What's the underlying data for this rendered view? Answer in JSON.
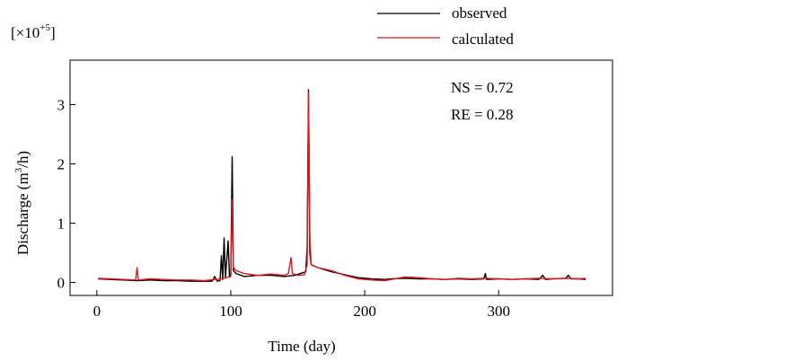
{
  "chart_data": {
    "type": "line",
    "title": "",
    "xlabel": "Time (day)",
    "ylabel_base": "Discharge (m",
    "ylabel_sup": "3",
    "ylabel_end": "/h)",
    "scale_prefix": "[×10",
    "scale_exp": "+5",
    "scale_suffix": "]",
    "xlim": [
      -20,
      385
    ],
    "ylim": [
      -0.22,
      3.75
    ],
    "xticks": [
      0,
      100,
      200,
      300
    ],
    "yticks": [
      0,
      1,
      2,
      3
    ],
    "legend_position": "top-right",
    "annotations": [
      "NS = 0.72",
      "RE = 0.28"
    ],
    "series": [
      {
        "name": "observed",
        "color": "#000000",
        "points": [
          [
            1,
            0.06
          ],
          [
            10,
            0.05
          ],
          [
            20,
            0.04
          ],
          [
            30,
            0.03
          ],
          [
            40,
            0.04
          ],
          [
            50,
            0.03
          ],
          [
            60,
            0.03
          ],
          [
            70,
            0.02
          ],
          [
            80,
            0.02
          ],
          [
            86,
            0.02
          ],
          [
            88,
            0.1
          ],
          [
            90,
            0.02
          ],
          [
            92,
            0.03
          ],
          [
            93,
            0.45
          ],
          [
            94,
            0.05
          ],
          [
            95,
            0.75
          ],
          [
            96,
            0.08
          ],
          [
            98,
            0.7
          ],
          [
            99,
            0.1
          ],
          [
            100,
            0.15
          ],
          [
            101,
            2.12
          ],
          [
            102,
            0.2
          ],
          [
            104,
            0.15
          ],
          [
            110,
            0.1
          ],
          [
            120,
            0.12
          ],
          [
            130,
            0.12
          ],
          [
            140,
            0.1
          ],
          [
            148,
            0.12
          ],
          [
            152,
            0.15
          ],
          [
            156,
            0.18
          ],
          [
            157,
            0.6
          ],
          [
            158,
            3.25
          ],
          [
            159,
            0.5
          ],
          [
            160,
            0.3
          ],
          [
            165,
            0.25
          ],
          [
            175,
            0.18
          ],
          [
            185,
            0.13
          ],
          [
            195,
            0.08
          ],
          [
            205,
            0.06
          ],
          [
            215,
            0.05
          ],
          [
            220,
            0.06
          ],
          [
            230,
            0.07
          ],
          [
            240,
            0.06
          ],
          [
            250,
            0.06
          ],
          [
            260,
            0.05
          ],
          [
            270,
            0.06
          ],
          [
            280,
            0.05
          ],
          [
            289,
            0.06
          ],
          [
            290,
            0.15
          ],
          [
            291,
            0.05
          ],
          [
            300,
            0.06
          ],
          [
            310,
            0.05
          ],
          [
            320,
            0.06
          ],
          [
            330,
            0.05
          ],
          [
            333,
            0.12
          ],
          [
            335,
            0.05
          ],
          [
            340,
            0.06
          ],
          [
            350,
            0.07
          ],
          [
            352,
            0.12
          ],
          [
            354,
            0.06
          ],
          [
            360,
            0.06
          ],
          [
            365,
            0.05
          ]
        ]
      },
      {
        "name": "calculated",
        "color": "#e8141b",
        "points": [
          [
            1,
            0.07
          ],
          [
            10,
            0.06
          ],
          [
            20,
            0.05
          ],
          [
            29,
            0.04
          ],
          [
            30,
            0.25
          ],
          [
            31,
            0.04
          ],
          [
            40,
            0.06
          ],
          [
            50,
            0.05
          ],
          [
            60,
            0.04
          ],
          [
            70,
            0.04
          ],
          [
            80,
            0.03
          ],
          [
            90,
            0.05
          ],
          [
            95,
            0.07
          ],
          [
            100,
            0.1
          ],
          [
            101,
            1.4
          ],
          [
            102,
            0.25
          ],
          [
            104,
            0.2
          ],
          [
            110,
            0.15
          ],
          [
            120,
            0.12
          ],
          [
            130,
            0.14
          ],
          [
            140,
            0.12
          ],
          [
            143,
            0.15
          ],
          [
            145,
            0.42
          ],
          [
            146,
            0.15
          ],
          [
            150,
            0.12
          ],
          [
            155,
            0.13
          ],
          [
            157,
            0.3
          ],
          [
            158,
            3.2
          ],
          [
            159,
            0.8
          ],
          [
            160,
            0.3
          ],
          [
            165,
            0.25
          ],
          [
            175,
            0.2
          ],
          [
            185,
            0.12
          ],
          [
            195,
            0.06
          ],
          [
            205,
            0.04
          ],
          [
            215,
            0.03
          ],
          [
            220,
            0.05
          ],
          [
            230,
            0.09
          ],
          [
            240,
            0.08
          ],
          [
            250,
            0.06
          ],
          [
            260,
            0.05
          ],
          [
            270,
            0.07
          ],
          [
            280,
            0.06
          ],
          [
            290,
            0.07
          ],
          [
            300,
            0.06
          ],
          [
            310,
            0.05
          ],
          [
            320,
            0.06
          ],
          [
            330,
            0.07
          ],
          [
            340,
            0.06
          ],
          [
            350,
            0.07
          ],
          [
            360,
            0.06
          ],
          [
            365,
            0.07
          ]
        ]
      }
    ]
  }
}
